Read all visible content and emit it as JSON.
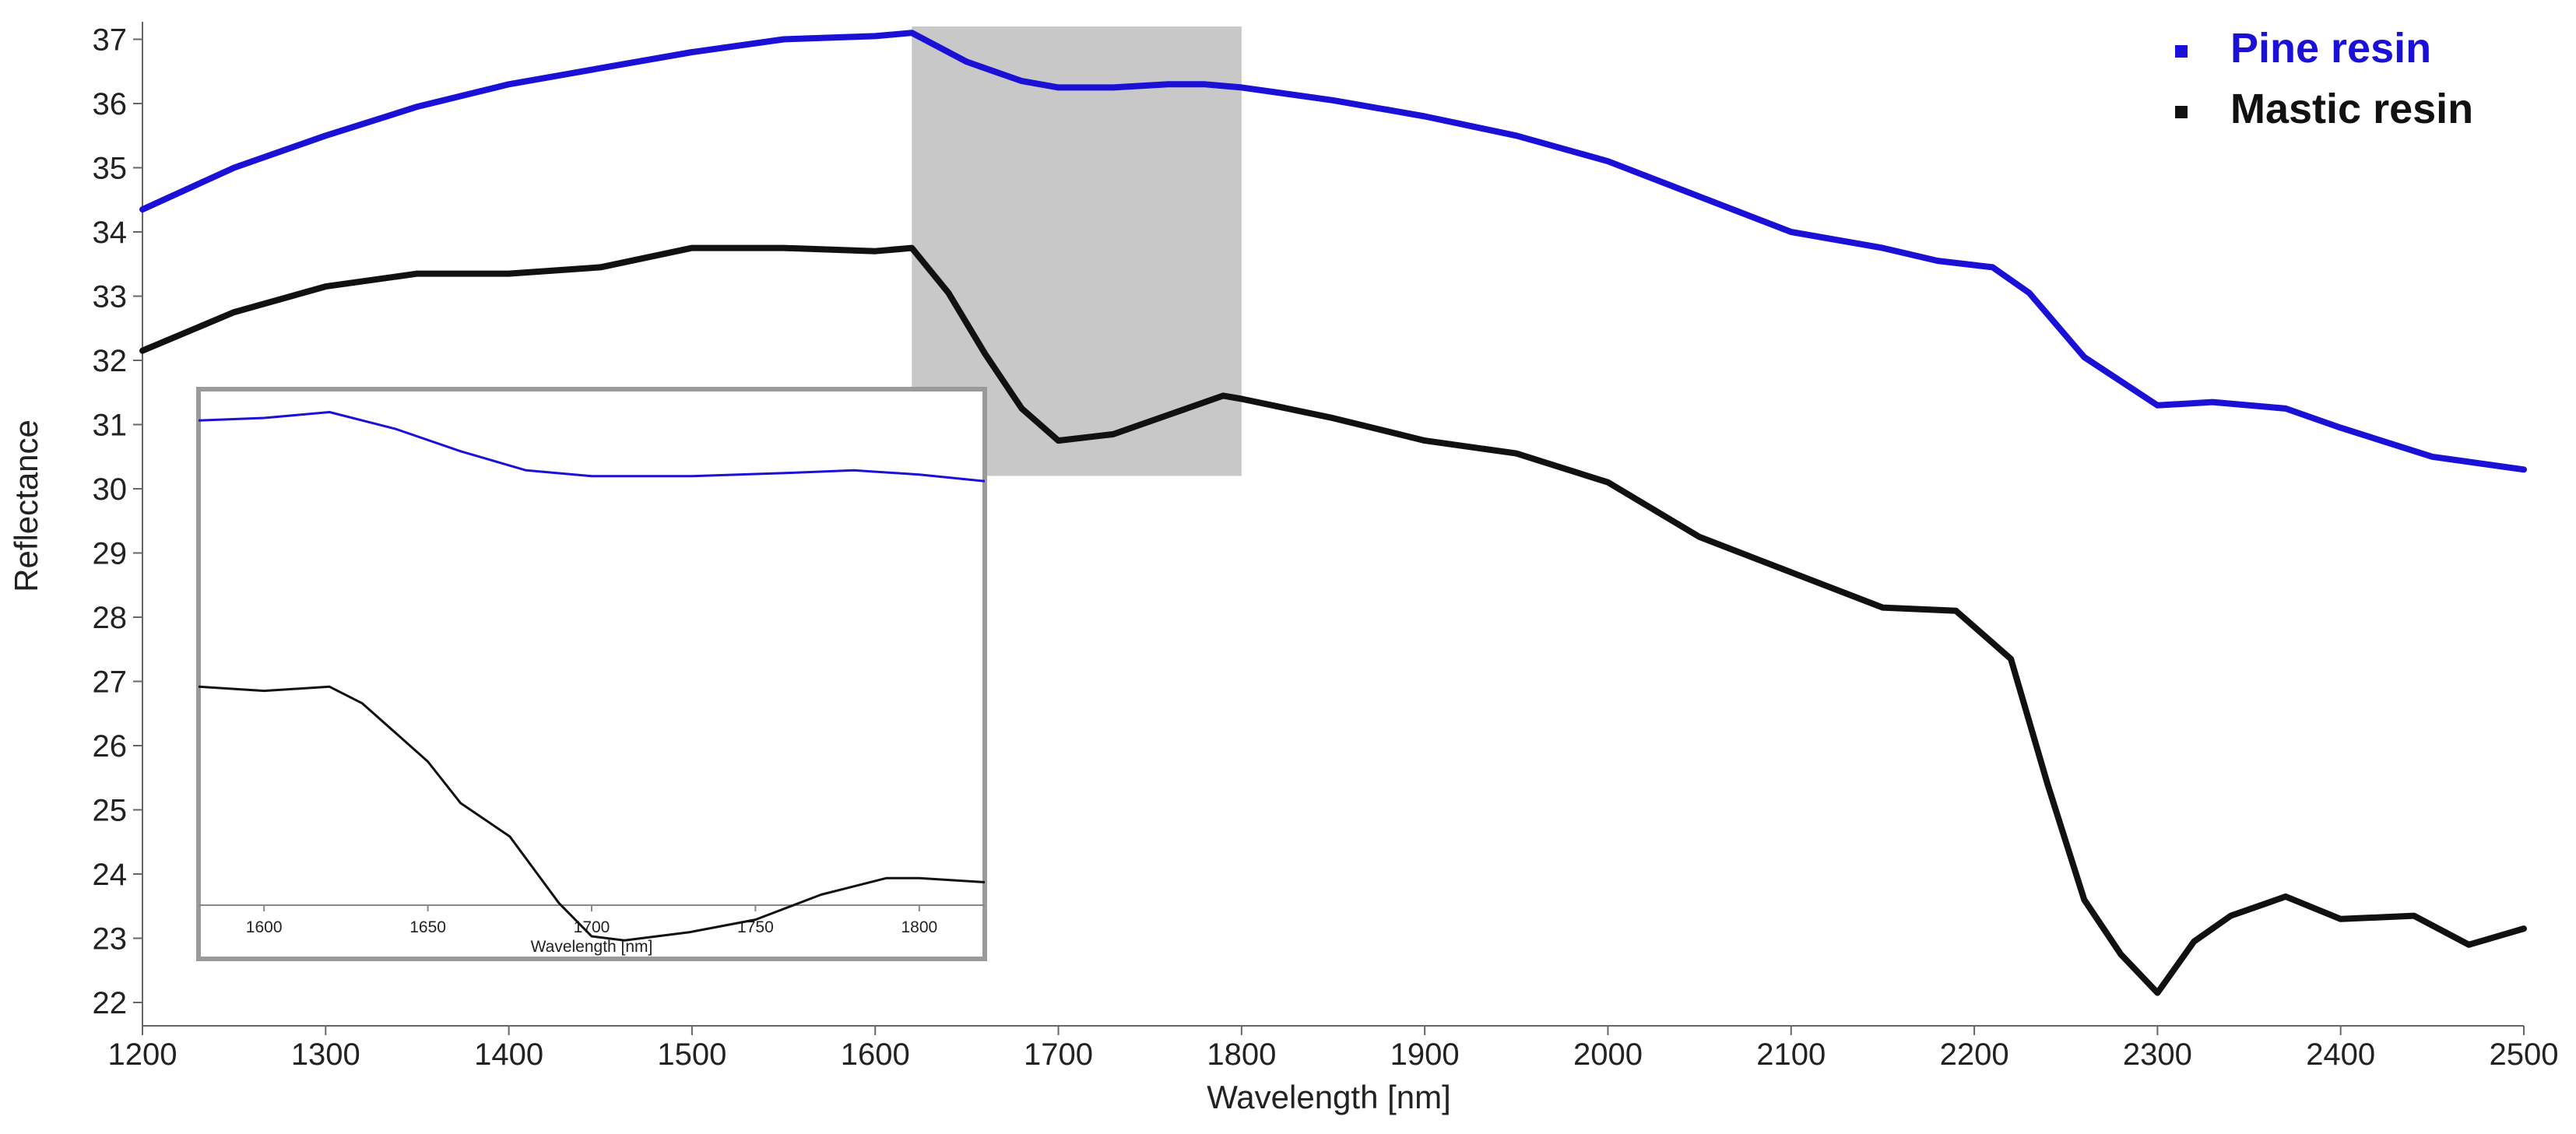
{
  "chart_data": [
    {
      "type": "line",
      "xlabel": "Wavelength [nm]",
      "ylabel": "Reflectance",
      "xlim": [
        1200,
        2500
      ],
      "ylim": [
        22,
        37
      ],
      "xticks": [
        1200,
        1300,
        1400,
        1500,
        1600,
        1700,
        1800,
        1900,
        2000,
        2100,
        2200,
        2300,
        2400,
        2500
      ],
      "yticks": [
        22,
        23,
        24,
        25,
        26,
        27,
        28,
        29,
        30,
        31,
        32,
        33,
        34,
        35,
        36,
        37
      ],
      "highlight_region": {
        "x": [
          1620,
          1800
        ],
        "y": [
          30.2,
          37.2
        ],
        "color": "#c8c8c8"
      },
      "legend_position": "top-right",
      "series": [
        {
          "name": "Pine resin",
          "color": "#1a10d6",
          "x": [
            1200,
            1250,
            1300,
            1350,
            1400,
            1450,
            1500,
            1550,
            1600,
            1620,
            1650,
            1680,
            1700,
            1730,
            1760,
            1780,
            1800,
            1850,
            1900,
            1950,
            2000,
            2050,
            2100,
            2150,
            2180,
            2210,
            2230,
            2260,
            2300,
            2330,
            2370,
            2400,
            2450,
            2500
          ],
          "y": [
            34.35,
            35.0,
            35.5,
            35.95,
            36.3,
            36.55,
            36.8,
            37.0,
            37.05,
            37.1,
            36.65,
            36.35,
            36.25,
            36.25,
            36.3,
            36.3,
            36.25,
            36.05,
            35.8,
            35.5,
            35.1,
            34.55,
            34.0,
            33.75,
            33.55,
            33.45,
            33.05,
            32.05,
            31.3,
            31.35,
            31.25,
            30.95,
            30.5,
            30.3
          ]
        },
        {
          "name": "Mastic resin",
          "color": "#111111",
          "x": [
            1200,
            1250,
            1300,
            1350,
            1400,
            1450,
            1500,
            1550,
            1600,
            1620,
            1640,
            1660,
            1680,
            1700,
            1730,
            1760,
            1790,
            1800,
            1850,
            1900,
            1950,
            2000,
            2050,
            2100,
            2150,
            2190,
            2220,
            2240,
            2260,
            2280,
            2300,
            2320,
            2340,
            2370,
            2400,
            2440,
            2470,
            2500
          ],
          "y": [
            32.15,
            32.75,
            33.15,
            33.35,
            33.35,
            33.45,
            33.75,
            33.75,
            33.7,
            33.75,
            33.05,
            32.1,
            31.25,
            30.75,
            30.85,
            31.15,
            31.45,
            31.4,
            31.1,
            30.75,
            30.55,
            30.1,
            29.25,
            28.7,
            28.15,
            28.1,
            27.35,
            25.4,
            23.6,
            22.75,
            22.15,
            22.95,
            23.35,
            23.65,
            23.3,
            23.35,
            22.9,
            23.15
          ]
        }
      ]
    },
    {
      "type": "line",
      "xlabel": "Wavelength [nm]",
      "xlim": [
        1580,
        1820
      ],
      "xticks": [
        1600,
        1650,
        1700,
        1750,
        1800
      ],
      "inset_of": "main",
      "series": [
        {
          "name": "Pine resin",
          "color": "#1a10d6",
          "x": [
            1580,
            1600,
            1620,
            1640,
            1660,
            1680,
            1700,
            1730,
            1760,
            1780,
            1800,
            1820
          ],
          "y": [
            36.95,
            36.98,
            37.05,
            36.85,
            36.58,
            36.35,
            36.28,
            36.28,
            36.32,
            36.35,
            36.3,
            36.22
          ]
        },
        {
          "name": "Mastic resin",
          "color": "#111111",
          "x": [
            1580,
            1600,
            1620,
            1630,
            1650,
            1660,
            1675,
            1690,
            1700,
            1710,
            1730,
            1750,
            1770,
            1790,
            1800,
            1820
          ],
          "y": [
            33.75,
            33.7,
            33.75,
            33.55,
            32.85,
            32.35,
            31.95,
            31.15,
            30.75,
            30.7,
            30.8,
            30.95,
            31.25,
            31.45,
            31.45,
            31.4
          ]
        }
      ]
    }
  ]
}
